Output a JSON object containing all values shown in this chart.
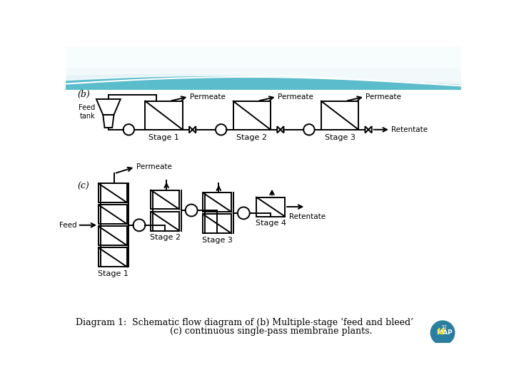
{
  "bg_color": "#ffffff",
  "caption_line1": "Diagram 1:  Schematic flow diagram of (b) Multiple-stage ‘feed and bleed’",
  "caption_line2": "(c) continuous single-pass membrane plants.",
  "label_b": "(b)",
  "label_c": "(c)",
  "feed_tank_label": "Feed\ntank",
  "feed_label": "Feed",
  "permeate_label": "Permeate",
  "retentate_label": "Retentate",
  "stage1_label": "Stage 1",
  "stage2_label": "Stage 2",
  "stage3_label": "Stage 3",
  "stage4_label": "Stage 4",
  "header_teal": "#5bbccc",
  "header_light": "#a0dce8",
  "header_dark": "#3a9aaa"
}
